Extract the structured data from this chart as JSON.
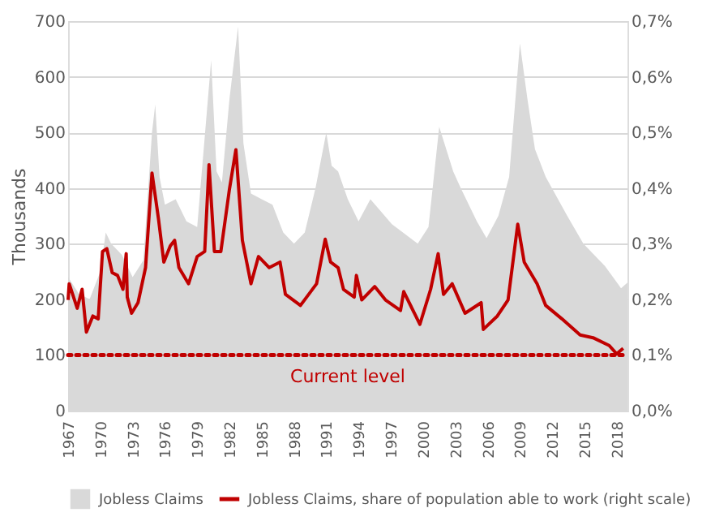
{
  "chart_data": {
    "type": "area",
    "ylabel": "Thousands",
    "legend": "bottom",
    "grid": "y",
    "xlim": [
      1967,
      2019
    ],
    "xticks": [
      1967,
      1970,
      1973,
      1976,
      1979,
      1982,
      1985,
      1988,
      1991,
      1994,
      1997,
      2000,
      2003,
      2006,
      2009,
      2012,
      2015,
      2018
    ],
    "ylim": [
      0,
      700
    ],
    "yticks": [
      0,
      100,
      200,
      300,
      400,
      500,
      600,
      700
    ],
    "y2lim": [
      0,
      0.7
    ],
    "y2ticks": [
      {
        "value": 0,
        "label": "0,0%"
      },
      {
        "value": 0.1,
        "label": "0,1%"
      },
      {
        "value": 0.2,
        "label": "0,2%"
      },
      {
        "value": 0.3,
        "label": "0,3%"
      },
      {
        "value": 0.4,
        "label": "0,4%"
      },
      {
        "value": 0.5,
        "label": "0,5%"
      },
      {
        "value": 0.6,
        "label": "0,6%"
      },
      {
        "value": 0.7,
        "label": "0,7%"
      }
    ],
    "ref_lines": [
      {
        "axis": "y",
        "value": 100,
        "label": "Current level",
        "color": "#c00000",
        "line_style": "dotted"
      }
    ],
    "series": [
      {
        "name": "Jobless Claims",
        "color": "#d9d9d9",
        "x": [
          1967.0,
          1968,
          1969,
          1970,
          1970.5,
          1971,
          1972,
          1973,
          1974,
          1974.8,
          1975.1,
          1975.5,
          1976,
          1977,
          1978,
          1979,
          1980.3,
          1980.8,
          1981.3,
          1982,
          1982.8,
          1983.3,
          1984,
          1985,
          1986,
          1987,
          1988,
          1989,
          1990,
          1991,
          1991.5,
          1992.1,
          1993,
          1994,
          1995.1,
          1997.1,
          1999.5,
          2000.5,
          2001,
          2001.5,
          2002.8,
          2003.5,
          2005,
          2005.9,
          2007,
          2008,
          2009,
          2009.7,
          2010.4,
          2011.4,
          2013.4,
          2014.9,
          2016.9,
          2018.4,
          2019
        ],
        "values": [
          240,
          210,
          200,
          250,
          320,
          300,
          280,
          240,
          270,
          500,
          550,
          420,
          370,
          380,
          340,
          330,
          630,
          430,
          410,
          560,
          690,
          480,
          390,
          380,
          370,
          320,
          300,
          320,
          400,
          500,
          440,
          430,
          380,
          340,
          380,
          335,
          300,
          330,
          420,
          510,
          430,
          400,
          340,
          310,
          350,
          420,
          660,
          560,
          470,
          420,
          350,
          300,
          260,
          220,
          230
        ]
      },
      {
        "name": "Jobless Claims, share of population able to work (right scale)",
        "type": "line",
        "axis": "y2",
        "color": "#c00000",
        "x": [
          1967.0,
          1967.1,
          1967.85,
          1968.3,
          1968.7,
          1969.3,
          1969.8,
          1970.2,
          1970.6,
          1971.1,
          1971.6,
          1972.1,
          1972.4,
          1972.5,
          1972.9,
          1973.5,
          1974.2,
          1974.8,
          1975.4,
          1975.9,
          1976.5,
          1976.9,
          1977.3,
          1978.2,
          1979.0,
          1979.7,
          1980.1,
          1980.6,
          1981.2,
          1982.0,
          1982.6,
          1983.2,
          1984.0,
          1984.7,
          1985.7,
          1986.7,
          1987.2,
          1988.6,
          1990.1,
          1990.9,
          1991.4,
          1992.1,
          1992.6,
          1993.6,
          1993.8,
          1994.3,
          1995.5,
          1996.5,
          1997.9,
          1998.2,
          1999.7,
          2000.7,
          2001.4,
          2001.9,
          2002.7,
          2003.9,
          2005.4,
          2005.6,
          2006.9,
          2007.9,
          2008.8,
          2009.4,
          2010.6,
          2011.4,
          2012.9,
          2014.6,
          2015.8,
          2017.3,
          2018.0,
          2018.6
        ],
        "values": [
          0.199,
          0.228,
          0.184,
          0.218,
          0.141,
          0.17,
          0.165,
          0.286,
          0.291,
          0.248,
          0.243,
          0.218,
          0.282,
          0.204,
          0.175,
          0.194,
          0.257,
          0.427,
          0.345,
          0.267,
          0.296,
          0.306,
          0.257,
          0.228,
          0.277,
          0.286,
          0.442,
          0.286,
          0.286,
          0.398,
          0.469,
          0.306,
          0.228,
          0.277,
          0.257,
          0.267,
          0.209,
          0.189,
          0.228,
          0.308,
          0.267,
          0.257,
          0.218,
          0.204,
          0.243,
          0.199,
          0.223,
          0.199,
          0.18,
          0.214,
          0.155,
          0.218,
          0.282,
          0.209,
          0.228,
          0.175,
          0.194,
          0.146,
          0.17,
          0.199,
          0.335,
          0.267,
          0.228,
          0.189,
          0.165,
          0.136,
          0.131,
          0.117,
          0.102,
          0.112
        ]
      }
    ]
  }
}
